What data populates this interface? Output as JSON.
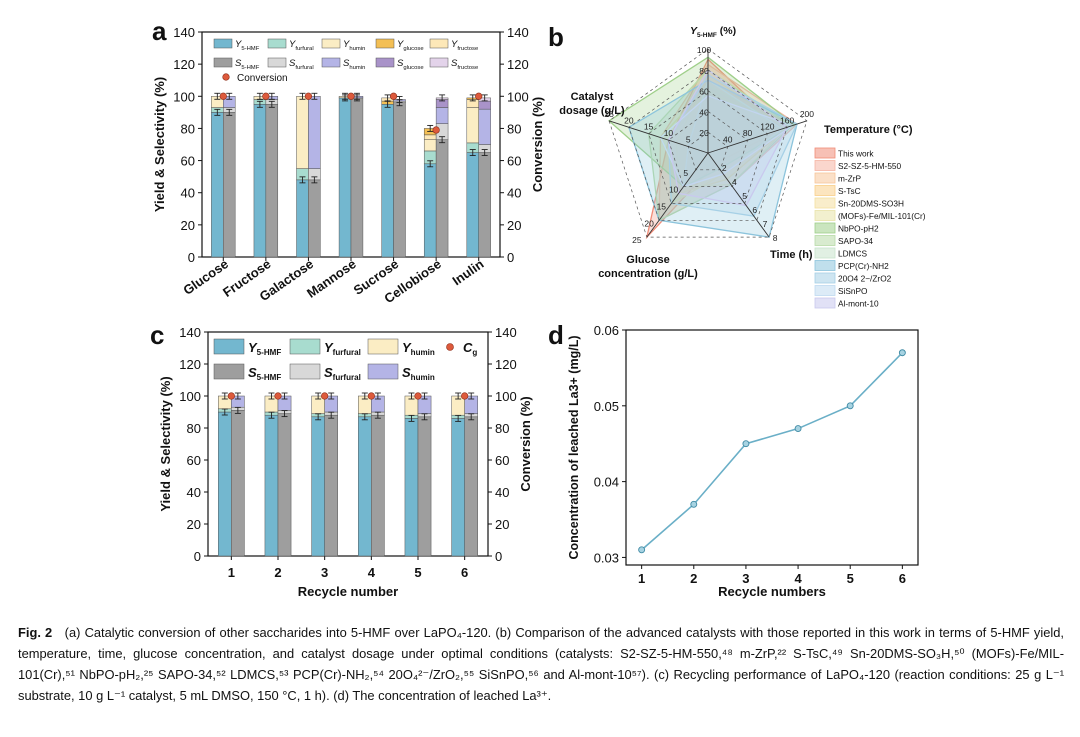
{
  "colors": {
    "Y_hmf": "#73b7cf",
    "S_hmf": "#9e9e9e",
    "Y_furfural": "#a8dccf",
    "S_furfural": "#d8d8d8",
    "Y_humin": "#fbedc4",
    "S_humin": "#b4b4e6",
    "Y_glucose": "#f3bf55",
    "S_glucose": "#a993c9",
    "Y_fructose": "#fde8b8",
    "S_fructose": "#e3d3ea",
    "conversion": "#dd5a3c",
    "line": "#6aafc7",
    "radar_grid": "#555555"
  },
  "panel_labels": {
    "a": "a",
    "b": "b",
    "c": "c",
    "d": "d"
  },
  "chart_data": [
    {
      "panel": "a",
      "type": "bar",
      "ylabel": "Yield & Selectivity (%)",
      "y2label": "Conversion (%)",
      "ylim": [
        0,
        140
      ],
      "y2lim": [
        0,
        140
      ],
      "yticks": [
        0,
        20,
        40,
        60,
        80,
        100,
        120,
        140
      ],
      "categories": [
        "Glucose",
        "Fructose",
        "Galactose",
        "Mannose",
        "Sucrose",
        "Cellobiose",
        "Inulin"
      ],
      "legend": {
        "Y_hmf": [
          "Y",
          "5-HMF"
        ],
        "Y_furfural": [
          "Y",
          "furfural"
        ],
        "Y_humin": [
          "Y",
          "humin"
        ],
        "Y_glucose": [
          "Y",
          "glucose"
        ],
        "Y_fructose": [
          "Y",
          "fructose"
        ],
        "S_hmf": [
          "S",
          "5-HMF"
        ],
        "S_furfural": [
          "S",
          "furfural"
        ],
        "S_humin": [
          "S",
          "humin"
        ],
        "S_glucose": [
          "S",
          "glucose"
        ],
        "S_fructose": [
          "S",
          "fructose"
        ],
        "conversion": "Conversion"
      },
      "yield_stacks": [
        [
          [
            90,
            "Y_hmf"
          ],
          [
            3,
            "Y_furfural"
          ],
          [
            7,
            "Y_humin"
          ]
        ],
        [
          [
            95,
            "Y_hmf"
          ],
          [
            3,
            "Y_furfural"
          ],
          [
            2,
            "Y_humin"
          ]
        ],
        [
          [
            48,
            "Y_hmf"
          ],
          [
            7,
            "Y_furfural"
          ],
          [
            45,
            "Y_humin"
          ]
        ],
        [
          [
            99,
            "Y_hmf"
          ],
          [
            1,
            "Y_humin"
          ]
        ],
        [
          [
            95,
            "Y_hmf"
          ],
          [
            2,
            "Y_glucose"
          ],
          [
            2,
            "Y_fructose"
          ]
        ],
        [
          [
            58,
            "Y_hmf"
          ],
          [
            8,
            "Y_furfural"
          ],
          [
            7,
            "Y_humin"
          ],
          [
            3,
            "Y_fructose"
          ],
          [
            4,
            "Y_glucose"
          ]
        ],
        [
          [
            65,
            "Y_hmf"
          ],
          [
            6,
            "Y_furfural"
          ],
          [
            22,
            "Y_humin"
          ],
          [
            5,
            "Y_fructose"
          ],
          [
            1,
            "Y_glucose"
          ]
        ]
      ],
      "selectivity_stacks": [
        [
          [
            90,
            "S_hmf"
          ],
          [
            3,
            "S_furfural"
          ],
          [
            7,
            "S_humin"
          ]
        ],
        [
          [
            95,
            "S_hmf"
          ],
          [
            3,
            "S_furfural"
          ],
          [
            2,
            "S_humin"
          ]
        ],
        [
          [
            48,
            "S_hmf"
          ],
          [
            7,
            "S_furfural"
          ],
          [
            45,
            "S_humin"
          ]
        ],
        [
          [
            99,
            "S_hmf"
          ],
          [
            1,
            "S_humin"
          ]
        ],
        [
          [
            96,
            "S_hmf"
          ],
          [
            1,
            "S_furfural"
          ],
          [
            1,
            "S_humin"
          ]
        ],
        [
          [
            73,
            "S_hmf"
          ],
          [
            10,
            "S_furfural"
          ],
          [
            10,
            "S_humin"
          ],
          [
            5,
            "S_glucose"
          ],
          [
            1,
            "S_fructose"
          ]
        ],
        [
          [
            65,
            "S_hmf"
          ],
          [
            5,
            "S_furfural"
          ],
          [
            22,
            "S_humin"
          ],
          [
            5,
            "S_glucose"
          ],
          [
            2,
            "S_fructose"
          ]
        ]
      ],
      "conversion": [
        100,
        100,
        100,
        100,
        100,
        79,
        100
      ]
    },
    {
      "panel": "b",
      "type": "radar",
      "axes": [
        {
          "label": "Y",
          "sub": "5-HMF",
          "unit": " (%)",
          "ticks": [
            "20",
            "40",
            "60",
            "80",
            "100"
          ]
        },
        {
          "label": "Temperature",
          "unit": " (°C)",
          "ticks": [
            "40",
            "80",
            "120",
            "160",
            "200"
          ]
        },
        {
          "label": "Time (h)",
          "ticks": [
            "2",
            "4",
            "5",
            "6",
            "7",
            "8"
          ]
        },
        {
          "label": "Glucose",
          "label2": "concentration (g/L)",
          "ticks": [
            "5",
            "10",
            "15",
            "20",
            "25"
          ]
        },
        {
          "label": "Catalyst",
          "label2": "dosage (g/L)",
          "ticks": [
            "5",
            "10",
            "15",
            "20",
            "25"
          ]
        }
      ],
      "axis_max": [
        100,
        200,
        8,
        25,
        25
      ],
      "series": [
        {
          "name": "This work",
          "color": "#f08c78",
          "values": [
            90,
            150,
            1,
            25,
            10
          ]
        },
        {
          "name": "S2-SZ-5-HM-550",
          "color": "#f6b5a4",
          "values": [
            85,
            180,
            3,
            20,
            12
          ]
        },
        {
          "name": "m-ZrP",
          "color": "#f7c69a",
          "values": [
            70,
            170,
            2,
            10,
            10
          ]
        },
        {
          "name": "S-TsC",
          "color": "#f9d08a",
          "values": [
            75,
            160,
            2.5,
            12,
            8
          ]
        },
        {
          "name": "Sn-20DMS-SO3H",
          "color": "#f4dfa0",
          "values": [
            60,
            150,
            2,
            15,
            10
          ]
        },
        {
          "name": "(MOFs)-Fe/MIL-101(Cr)",
          "color": "#e8e3a8",
          "values": [
            65,
            160,
            3,
            10,
            12
          ]
        },
        {
          "name": "NbPO-pH2",
          "color": "#9fcf8a",
          "values": [
            92,
            175,
            1.5,
            10,
            25
          ]
        },
        {
          "name": "SAPO-34",
          "color": "#b8dba8",
          "values": [
            80,
            170,
            3,
            20,
            15
          ]
        },
        {
          "name": "LDMCS",
          "color": "#c8e4cc",
          "values": [
            70,
            150,
            2,
            10,
            5
          ]
        },
        {
          "name": "PCP(Cr)-NH2",
          "color": "#8cc4dc",
          "values": [
            70,
            180,
            8,
            20,
            20
          ]
        },
        {
          "name": "20O4 2−/ZrO2",
          "color": "#a6d0e6",
          "values": [
            75,
            180,
            6,
            15,
            10
          ]
        },
        {
          "name": "SiSnPO",
          "color": "#c0daf0",
          "values": [
            55,
            170,
            2,
            10,
            12
          ]
        },
        {
          "name": "Al-mont-10",
          "color": "#c9c9ee",
          "values": [
            80,
            160,
            5,
            12,
            10
          ]
        }
      ]
    },
    {
      "panel": "c",
      "type": "bar",
      "xlabel": "Recycle number",
      "ylabel": "Yield & Selectivity (%)",
      "y2label": "Conversion (%)",
      "ylim": [
        0,
        140
      ],
      "y2lim": [
        0,
        140
      ],
      "yticks": [
        0,
        20,
        40,
        60,
        80,
        100,
        120,
        140
      ],
      "categories": [
        "1",
        "2",
        "3",
        "4",
        "5",
        "6"
      ],
      "legend": {
        "Y_hmf": [
          "Y",
          "5-HMF"
        ],
        "Y_furfural": [
          "Y",
          "furfural"
        ],
        "Y_humin": [
          "Y",
          "humin"
        ],
        "conversion": [
          "C",
          "g"
        ],
        "S_hmf": [
          "S",
          "5-HMF"
        ],
        "S_furfural": [
          "S",
          "furfural"
        ],
        "S_humin": [
          "S",
          "humin"
        ]
      },
      "yield_stacks": [
        [
          [
            90,
            "Y_hmf"
          ],
          [
            2,
            "Y_furfural"
          ],
          [
            8,
            "Y_humin"
          ]
        ],
        [
          [
            88,
            "Y_hmf"
          ],
          [
            2,
            "Y_furfural"
          ],
          [
            10,
            "Y_humin"
          ]
        ],
        [
          [
            87,
            "Y_hmf"
          ],
          [
            2,
            "Y_furfural"
          ],
          [
            11,
            "Y_humin"
          ]
        ],
        [
          [
            87,
            "Y_hmf"
          ],
          [
            2,
            "Y_furfural"
          ],
          [
            11,
            "Y_humin"
          ]
        ],
        [
          [
            86,
            "Y_hmf"
          ],
          [
            2,
            "Y_furfural"
          ],
          [
            12,
            "Y_humin"
          ]
        ],
        [
          [
            86,
            "Y_hmf"
          ],
          [
            2,
            "Y_furfural"
          ],
          [
            12,
            "Y_humin"
          ]
        ]
      ],
      "selectivity_stacks": [
        [
          [
            91,
            "S_hmf"
          ],
          [
            2,
            "S_furfural"
          ],
          [
            7,
            "S_humin"
          ]
        ],
        [
          [
            89,
            "S_hmf"
          ],
          [
            2,
            "S_furfural"
          ],
          [
            9,
            "S_humin"
          ]
        ],
        [
          [
            88,
            "S_hmf"
          ],
          [
            2,
            "S_furfural"
          ],
          [
            10,
            "S_humin"
          ]
        ],
        [
          [
            88,
            "S_hmf"
          ],
          [
            2,
            "S_furfural"
          ],
          [
            10,
            "S_humin"
          ]
        ],
        [
          [
            87,
            "S_hmf"
          ],
          [
            2,
            "S_furfural"
          ],
          [
            11,
            "S_humin"
          ]
        ],
        [
          [
            87,
            "S_hmf"
          ],
          [
            2,
            "S_furfural"
          ],
          [
            11,
            "S_humin"
          ]
        ]
      ],
      "conversion": [
        100,
        100,
        100,
        100,
        100,
        100
      ]
    },
    {
      "panel": "d",
      "type": "line",
      "xlabel": "Recycle numbers",
      "ylabel": "Concentration of leached La3+ (mg/L)",
      "x": [
        1,
        2,
        3,
        4,
        5,
        6
      ],
      "y": [
        0.031,
        0.037,
        0.045,
        0.047,
        0.05,
        0.057
      ],
      "xlim": [
        0.7,
        6.3
      ],
      "ylim": [
        0.029,
        0.06
      ],
      "yticks": [
        "0.03",
        "0.04",
        "0.05",
        "0.06"
      ]
    }
  ],
  "caption": {
    "label": "Fig. 2",
    "text": "(a) Catalytic conversion of other saccharides into 5-HMF over LaPO₄-120. (b) Comparison of the advanced catalysts with those reported in this work in terms of 5-HMF yield, temperature, time, glucose concentration, and catalyst dosage under optimal conditions (catalysts: S2-SZ-5-HM-550,⁴⁸ m-ZrP,²² S-TsC,⁴⁹ Sn-20DMS-SO₃H,⁵⁰ (MOFs)-Fe/MIL-101(Cr),⁵¹ NbPO-pH₂,²⁵ SAPO-34,⁵² LDMCS,⁵³ PCP(Cr)-NH₂,⁵⁴ 20O₄²⁻/ZrO₂,⁵⁵ SiSnPO,⁵⁶ and Al-mont-10⁵⁷). (c) Recycling performance of LaPO₄-120 (reaction conditions: 25 g L⁻¹ substrate, 10 g L⁻¹ catalyst, 5 mL DMSO, 150 °C, 1 h). (d) The concentration of leached La³⁺."
  }
}
